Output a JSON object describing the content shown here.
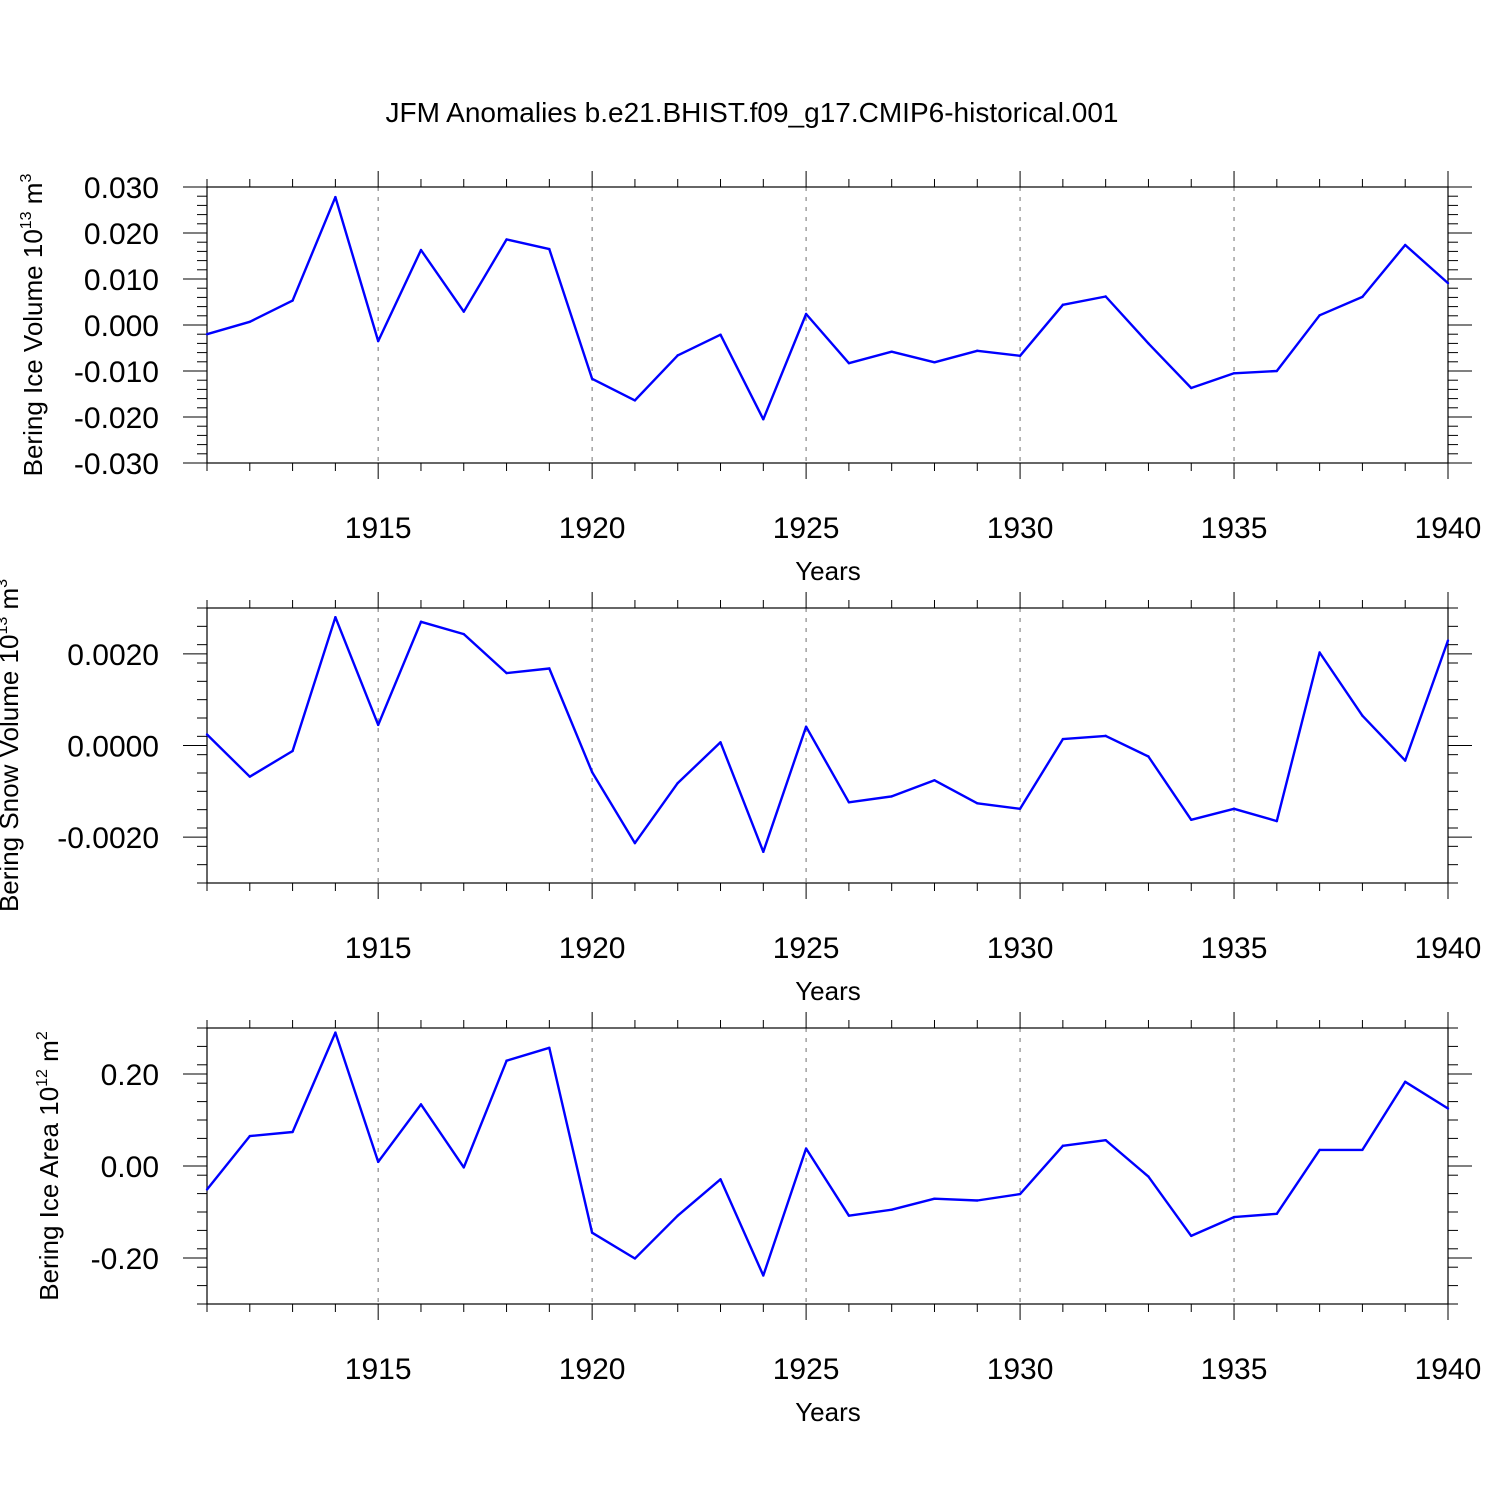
{
  "figure_title": "JFM Anomalies b.e21.BHIST.f09_g17.CMIP6-historical.001",
  "line_color": "#0000ff",
  "chart_data": [
    {
      "type": "line",
      "ylabel": "Bering Ice Volume 10",
      "ylabel_exponent": "13",
      "ylabel_unit": "m",
      "ylabel_unit_exponent": "3",
      "xlabel": "Years",
      "xlim": [
        1911,
        1940
      ],
      "ylim": [
        -0.03,
        0.03
      ],
      "xticks": [
        1915,
        1920,
        1925,
        1930,
        1935,
        1940
      ],
      "yticks": [
        -0.03,
        -0.02,
        -0.01,
        0.0,
        0.01,
        0.02,
        0.03
      ],
      "ytick_labels": [
        "-0.030",
        "-0.020",
        "-0.010",
        "0.000",
        "0.010",
        "0.020",
        "0.030"
      ],
      "x": [
        1911,
        1912,
        1913,
        1914,
        1915,
        1916,
        1917,
        1918,
        1919,
        1920,
        1921,
        1922,
        1923,
        1924,
        1925,
        1926,
        1927,
        1928,
        1929,
        1930,
        1931,
        1932,
        1933,
        1934,
        1935,
        1936,
        1937,
        1938,
        1939,
        1940
      ],
      "values": [
        -0.002,
        0.0007,
        0.0053,
        0.0278,
        -0.0035,
        0.0163,
        0.0029,
        0.0186,
        0.0165,
        -0.0117,
        -0.0164,
        -0.0066,
        -0.0021,
        -0.0205,
        0.0024,
        -0.0083,
        -0.0058,
        -0.0081,
        -0.0056,
        -0.0067,
        0.0044,
        0.0062,
        -0.004,
        -0.0137,
        -0.0105,
        -0.01,
        0.0021,
        0.0061,
        0.0174,
        0.0091
      ]
    },
    {
      "type": "line",
      "ylabel": "Bering Snow Volume 10",
      "ylabel_exponent": "13",
      "ylabel_unit": "m",
      "ylabel_unit_exponent": "3",
      "xlabel": "Years",
      "xlim": [
        1911,
        1940
      ],
      "ylim": [
        -0.003,
        0.003
      ],
      "xticks": [
        1915,
        1920,
        1925,
        1930,
        1935,
        1940
      ],
      "yticks": [
        -0.002,
        0.0,
        0.002
      ],
      "ytick_labels": [
        "-0.0020",
        "0.0000",
        "0.0020"
      ],
      "x": [
        1911,
        1912,
        1913,
        1914,
        1915,
        1916,
        1917,
        1918,
        1919,
        1920,
        1921,
        1922,
        1923,
        1924,
        1925,
        1926,
        1927,
        1928,
        1929,
        1930,
        1931,
        1932,
        1933,
        1934,
        1935,
        1936,
        1937,
        1938,
        1939,
        1940
      ],
      "values": [
        0.00024,
        -0.00068,
        -0.00012,
        0.0028,
        0.00045,
        0.0027,
        0.00243,
        0.00158,
        0.00168,
        -0.00058,
        -0.00213,
        -0.00082,
        7e-05,
        -0.00232,
        0.00041,
        -0.00124,
        -0.00111,
        -0.00076,
        -0.00126,
        -0.00138,
        0.00014,
        0.00021,
        -0.00024,
        -0.00162,
        -0.00138,
        -0.00165,
        0.00203,
        0.00065,
        -0.00033,
        0.00229
      ]
    },
    {
      "type": "line",
      "ylabel": "Bering Ice Area 10",
      "ylabel_exponent": "12",
      "ylabel_unit": "m",
      "ylabel_unit_exponent": "2",
      "xlabel": "Years",
      "xlim": [
        1911,
        1940
      ],
      "ylim": [
        -0.3,
        0.3
      ],
      "xticks": [
        1915,
        1920,
        1925,
        1930,
        1935,
        1940
      ],
      "yticks": [
        -0.2,
        0.0,
        0.2
      ],
      "ytick_labels": [
        "-0.20",
        "0.00",
        "0.20"
      ],
      "x": [
        1911,
        1912,
        1913,
        1914,
        1915,
        1916,
        1917,
        1918,
        1919,
        1920,
        1921,
        1922,
        1923,
        1924,
        1925,
        1926,
        1927,
        1928,
        1929,
        1930,
        1931,
        1932,
        1933,
        1934,
        1935,
        1936,
        1937,
        1938,
        1939,
        1940
      ],
      "values": [
        -0.051,
        0.065,
        0.074,
        0.29,
        0.009,
        0.134,
        -0.003,
        0.229,
        0.257,
        -0.145,
        -0.201,
        -0.108,
        -0.029,
        -0.238,
        0.038,
        -0.108,
        -0.095,
        -0.071,
        -0.075,
        -0.061,
        0.044,
        0.056,
        -0.023,
        -0.152,
        -0.111,
        -0.104,
        0.035,
        0.035,
        0.183,
        0.125
      ]
    }
  ]
}
